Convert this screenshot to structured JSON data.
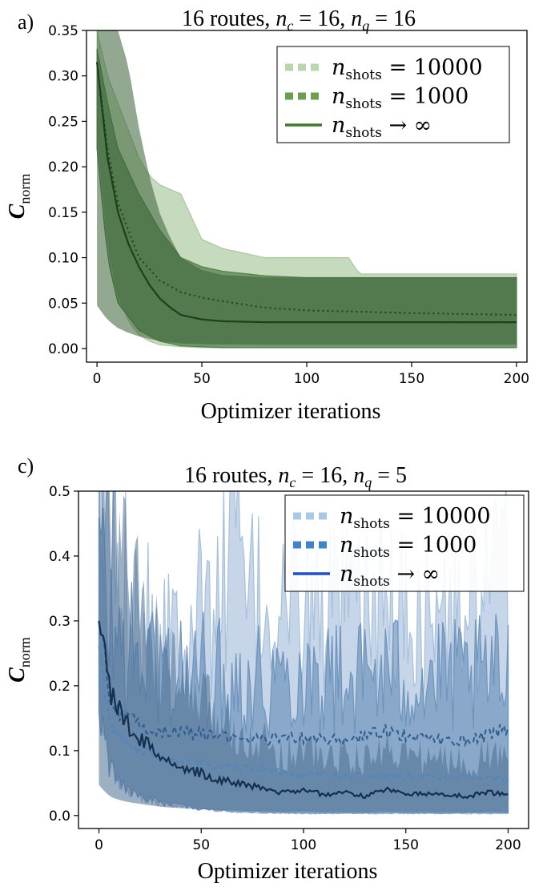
{
  "chart_data": [
    {
      "panel_label": "a)",
      "type": "line",
      "title_parts": {
        "prefix": "16 routes, ",
        "nc_value": "16",
        "nq_value": "16"
      },
      "xlabel": "Optimizer iterations",
      "ylabel": "C",
      "ylabel_sub": "norm",
      "xlim": [
        -5,
        205
      ],
      "ylim": [
        -0.015,
        0.35
      ],
      "xticks": [
        "0",
        "50",
        "100",
        "150",
        "200"
      ],
      "yticks": [
        "0.00",
        "0.05",
        "0.10",
        "0.15",
        "0.20",
        "0.25",
        "0.30",
        "0.35"
      ],
      "legend_position": "top-right",
      "legend": [
        {
          "var": "n",
          "sub": "shots",
          "rhs": " = 10000",
          "style": "light-dashed"
        },
        {
          "var": "n",
          "sub": "shots",
          "rhs": " = 1000",
          "style": "dashed"
        },
        {
          "var": "n",
          "sub": "shots",
          "rhs": " → ∞",
          "style": "solid"
        }
      ],
      "colors": {
        "band_light": "#a8c89a",
        "band_mid": "#4f7d49",
        "band_dark": "#3a6136",
        "line": "#1e3f1e",
        "legend_light": "#b9d7ad",
        "legend_mid": "#6a9f4e",
        "legend_solid": "#3f7a2c"
      },
      "series": [
        {
          "name": "n_shots = 10000",
          "band": {
            "x": [
              0,
              5,
              10,
              15,
              20,
              25,
              30,
              40,
              50,
              60,
              80,
              100,
              120,
              125,
              150,
              200
            ],
            "lower": [
              0.25,
              0.12,
              0.06,
              0.03,
              0.015,
              0.008,
              0.004,
              0.002,
              0.001,
              0.001,
              0.001,
              0.001,
              0.001,
              0.001,
              0.001,
              0.001
            ],
            "upper": [
              0.35,
              0.3,
              0.27,
              0.24,
              0.21,
              0.19,
              0.18,
              0.17,
              0.12,
              0.11,
              0.1,
              0.1,
              0.1,
              0.082,
              0.082,
              0.082
            ]
          }
        },
        {
          "name": "n_shots = 1000",
          "band": {
            "x": [
              0,
              5,
              10,
              20,
              30,
              40,
              50,
              60,
              80,
              100,
              150,
              200
            ],
            "lower": [
              0.22,
              0.1,
              0.05,
              0.02,
              0.008,
              0.003,
              0.002,
              0.001,
              0.001,
              0.001,
              0.001,
              0.001
            ],
            "upper": [
              0.33,
              0.27,
              0.22,
              0.17,
              0.13,
              0.1,
              0.09,
              0.085,
              0.08,
              0.078,
              0.078,
              0.078
            ]
          },
          "mean": {
            "x": [
              0,
              5,
              10,
              20,
              30,
              40,
              50,
              60,
              80,
              100,
              150,
              200
            ],
            "y": [
              0.315,
              0.22,
              0.16,
              0.1,
              0.075,
              0.062,
              0.056,
              0.052,
              0.045,
              0.042,
              0.039,
              0.037
            ]
          }
        },
        {
          "name": "n_shots → ∞",
          "mean": {
            "x": [
              0,
              5,
              10,
              15,
              20,
              25,
              30,
              35,
              40,
              50,
              60,
              80,
              100,
              150,
              200
            ],
            "y": [
              0.315,
              0.21,
              0.15,
              0.115,
              0.09,
              0.07,
              0.055,
              0.045,
              0.037,
              0.032,
              0.03,
              0.029,
              0.029,
              0.029,
              0.029
            ]
          }
        }
      ]
    },
    {
      "panel_label": "c)",
      "type": "line",
      "title_parts": {
        "prefix": "16 routes, ",
        "nc_value": "16",
        "nq_value": "5"
      },
      "xlabel": "Optimizer iterations",
      "ylabel": "C",
      "ylabel_sub": "norm",
      "xlim": [
        -10,
        210
      ],
      "ylim": [
        -0.02,
        0.5
      ],
      "xticks": [
        "0",
        "50",
        "100",
        "150",
        "200"
      ],
      "yticks": [
        "0.0",
        "0.1",
        "0.2",
        "0.3",
        "0.4",
        "0.5"
      ],
      "legend_position": "top-right",
      "legend": [
        {
          "var": "n",
          "sub": "shots",
          "rhs": " = 10000",
          "style": "light-dashed"
        },
        {
          "var": "n",
          "sub": "shots",
          "rhs": " = 1000",
          "style": "dashed"
        },
        {
          "var": "n",
          "sub": "shots",
          "rhs": " → ∞",
          "style": "solid"
        }
      ],
      "colors": {
        "band_light": "#a7c0dc",
        "band_mid": "#6f94bd",
        "band_dark": "#4d6d8f",
        "line": "#152f4f",
        "line_mid": "#2e5d8f",
        "line_light": "#4f86bd",
        "legend_light": "#a9c7e6",
        "legend_mid": "#3f84c6",
        "legend_solid": "#1f4fcf"
      },
      "series": [
        {
          "name": "n_shots = 10000",
          "band": {
            "x": [
              0,
              2,
              5,
              10,
              20,
              30,
              40,
              50,
              60,
              65,
              70,
              80,
              100,
              120,
              140,
              160,
              180,
              200
            ],
            "lower": [
              0.22,
              0.12,
              0.08,
              0.05,
              0.03,
              0.02,
              0.015,
              0.01,
              0.008,
              0.006,
              0.005,
              0.004,
              0.003,
              0.003,
              0.003,
              0.003,
              0.003,
              0.003
            ],
            "upper": [
              0.5,
              0.48,
              0.42,
              0.36,
              0.33,
              0.31,
              0.3,
              0.31,
              0.33,
              0.5,
              0.34,
              0.32,
              0.33,
              0.31,
              0.33,
              0.3,
              0.31,
              0.37
            ]
          },
          "mean": {
            "x": [
              0,
              5,
              10,
              20,
              30,
              40,
              50,
              60,
              80,
              100,
              120,
              140,
              160,
              180,
              200
            ],
            "y": [
              0.31,
              0.19,
              0.155,
              0.14,
              0.13,
              0.128,
              0.125,
              0.12,
              0.118,
              0.12,
              0.115,
              0.13,
              0.118,
              0.115,
              0.135
            ]
          }
        },
        {
          "name": "n_shots = 1000",
          "band": {
            "x": [
              0,
              5,
              10,
              20,
              30,
              40,
              50,
              60,
              80,
              100,
              120,
              140,
              160,
              180,
              200
            ],
            "lower": [
              0.18,
              0.08,
              0.05,
              0.03,
              0.02,
              0.015,
              0.01,
              0.008,
              0.005,
              0.004,
              0.004,
              0.004,
              0.004,
              0.004,
              0.004
            ],
            "upper": [
              0.4,
              0.3,
              0.26,
              0.24,
              0.23,
              0.22,
              0.22,
              0.21,
              0.21,
              0.22,
              0.21,
              0.22,
              0.21,
              0.21,
              0.22
            ]
          },
          "mean": {
            "x": [
              0,
              5,
              10,
              20,
              30,
              40,
              50,
              60,
              80,
              100,
              120,
              140,
              160,
              180,
              200
            ],
            "y": [
              0.25,
              0.15,
              0.12,
              0.1,
              0.09,
              0.085,
              0.08,
              0.075,
              0.07,
              0.065,
              0.062,
              0.06,
              0.06,
              0.058,
              0.055
            ]
          }
        },
        {
          "name": "n_shots → ∞",
          "mean": {
            "x": [
              0,
              3,
              6,
              10,
              15,
              20,
              25,
              30,
              40,
              50,
              60,
              70,
              80,
              90,
              100,
              110,
              120,
              130,
              140,
              150,
              160,
              170,
              180,
              190,
              200
            ],
            "y": [
              0.315,
              0.24,
              0.19,
              0.16,
              0.135,
              0.12,
              0.105,
              0.09,
              0.075,
              0.065,
              0.055,
              0.048,
              0.042,
              0.035,
              0.04,
              0.032,
              0.035,
              0.03,
              0.04,
              0.035,
              0.033,
              0.032,
              0.03,
              0.035,
              0.033
            ]
          }
        }
      ]
    }
  ]
}
